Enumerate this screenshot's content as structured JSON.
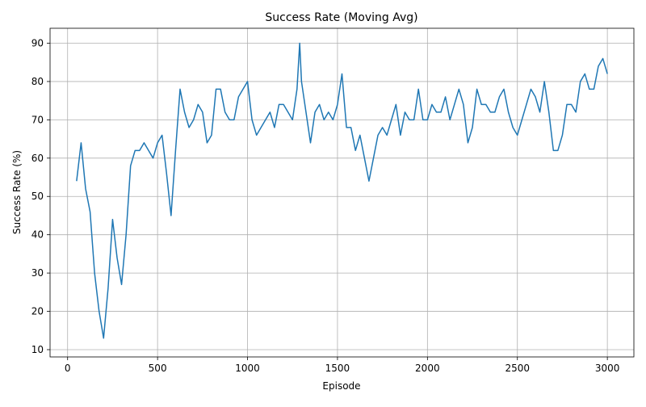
{
  "chart_data": {
    "type": "line",
    "title": "Success Rate (Moving Avg)",
    "x_label": "Episode",
    "y_label": "Success Rate (%)",
    "x": [
      50,
      75,
      100,
      125,
      150,
      175,
      200,
      225,
      250,
      275,
      300,
      325,
      350,
      375,
      400,
      425,
      450,
      475,
      500,
      525,
      550,
      575,
      600,
      625,
      650,
      675,
      700,
      725,
      750,
      775,
      800,
      825,
      850,
      875,
      900,
      925,
      950,
      975,
      1000,
      1025,
      1050,
      1075,
      1100,
      1125,
      1150,
      1175,
      1200,
      1225,
      1250,
      1275,
      1290,
      1300,
      1325,
      1350,
      1375,
      1400,
      1425,
      1450,
      1475,
      1500,
      1525,
      1550,
      1575,
      1600,
      1625,
      1650,
      1675,
      1700,
      1725,
      1750,
      1775,
      1800,
      1825,
      1850,
      1875,
      1900,
      1925,
      1950,
      1975,
      2000,
      2025,
      2050,
      2075,
      2100,
      2125,
      2150,
      2175,
      2200,
      2225,
      2250,
      2275,
      2300,
      2325,
      2350,
      2375,
      2400,
      2425,
      2450,
      2475,
      2500,
      2525,
      2550,
      2575,
      2600,
      2625,
      2650,
      2675,
      2700,
      2725,
      2750,
      2775,
      2800,
      2825,
      2850,
      2875,
      2900,
      2925,
      2950,
      2975,
      3000
    ],
    "values": [
      54,
      64,
      52,
      46,
      30,
      20,
      13,
      26,
      44,
      34,
      27,
      40,
      58,
      62,
      62,
      64,
      62,
      60,
      64,
      66,
      56,
      45,
      62,
      78,
      72,
      68,
      70,
      74,
      72,
      64,
      66,
      78,
      78,
      72,
      70,
      70,
      76,
      78,
      80,
      70,
      66,
      68,
      70,
      72,
      68,
      74,
      74,
      72,
      70,
      78,
      90,
      80,
      72,
      64,
      72,
      74,
      70,
      72,
      70,
      74,
      82,
      68,
      68,
      62,
      66,
      60,
      54,
      60,
      66,
      68,
      66,
      70,
      74,
      66,
      72,
      70,
      70,
      78,
      70,
      70,
      74,
      72,
      72,
      76,
      70,
      74,
      78,
      74,
      64,
      68,
      78,
      74,
      74,
      72,
      72,
      76,
      78,
      72,
      68,
      66,
      70,
      74,
      78,
      76,
      72,
      80,
      72,
      62,
      62,
      66,
      74,
      74,
      72,
      80,
      82,
      78,
      78,
      84,
      86,
      82
    ],
    "color": "#1f77b4",
    "xlim": [
      -97.5,
      3147.5
    ],
    "ylim": [
      8.1,
      93.9
    ],
    "xticks": [
      0,
      500,
      1000,
      1500,
      2000,
      2500,
      3000
    ],
    "yticks": [
      10,
      20,
      30,
      40,
      50,
      60,
      70,
      80,
      90
    ],
    "grid": true
  }
}
